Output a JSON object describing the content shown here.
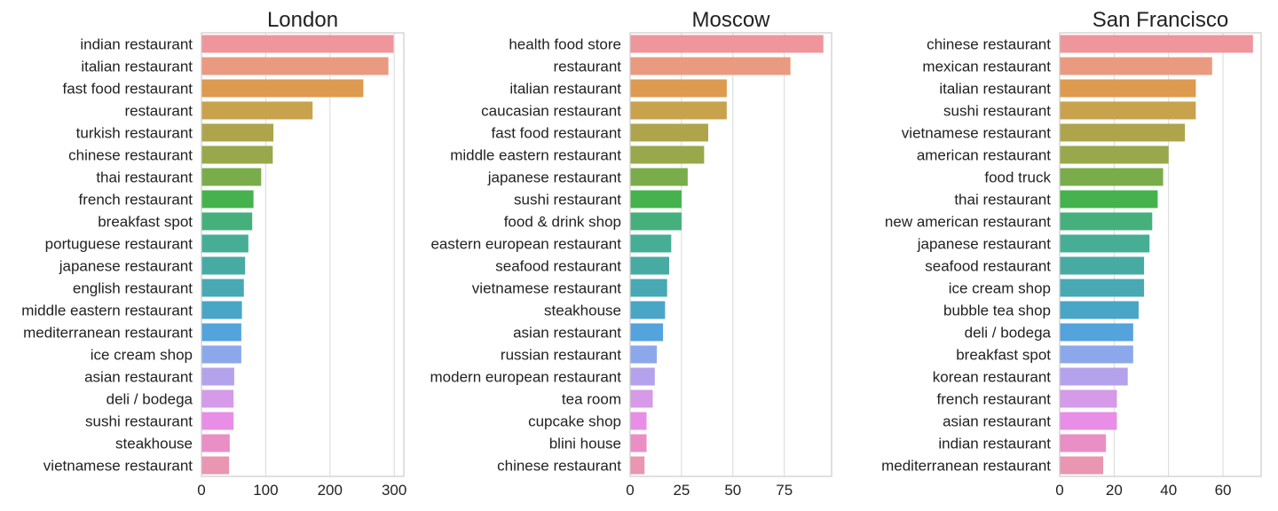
{
  "palette": [
    "#ee969c",
    "#e99a80",
    "#de9a4e",
    "#c9a24e",
    "#aea44b",
    "#98a84b",
    "#7aac4c",
    "#45b24e",
    "#46b07c",
    "#46ae95",
    "#47aba4",
    "#48a9b4",
    "#49a6c6",
    "#54a3dc",
    "#8ba9ea",
    "#b5a2ec",
    "#d59ae8",
    "#e88ee6",
    "#ea8ec6",
    "#ea95b2"
  ],
  "chart_data": [
    {
      "type": "bar",
      "orientation": "horizontal",
      "title": "London",
      "categories": [
        "indian restaurant",
        "italian restaurant",
        "fast food restaurant",
        "restaurant",
        "turkish restaurant",
        "chinese restaurant",
        "thai restaurant",
        "french restaurant",
        "breakfast spot",
        "portuguese restaurant",
        "japanese restaurant",
        "english restaurant",
        "middle eastern restaurant",
        "mediterranean restaurant",
        "ice cream shop",
        "asian restaurant",
        "deli / bodega",
        "sushi restaurant",
        "steakhouse",
        "vietnamese restaurant"
      ],
      "values": [
        299,
        291,
        252,
        173,
        112,
        111,
        93,
        81,
        79,
        73,
        68,
        66,
        63,
        62,
        62,
        51,
        50,
        50,
        44,
        43
      ],
      "xlim": [
        0,
        315
      ],
      "xticks": [
        0,
        100,
        200,
        300
      ],
      "grid": true
    },
    {
      "type": "bar",
      "orientation": "horizontal",
      "title": "Moscow",
      "categories": [
        "health food store",
        "restaurant",
        "italian restaurant",
        "caucasian restaurant",
        "fast food restaurant",
        "middle eastern restaurant",
        "japanese restaurant",
        "sushi restaurant",
        "food & drink shop",
        "eastern european restaurant",
        "seafood restaurant",
        "vietnamese restaurant",
        "steakhouse",
        "asian restaurant",
        "russian restaurant",
        "modern european restaurant",
        "tea room",
        "cupcake shop",
        "blini house",
        "chinese restaurant"
      ],
      "values": [
        94,
        78,
        47,
        47,
        38,
        36,
        28,
        25,
        25,
        20,
        19,
        18,
        17,
        16,
        13,
        12,
        11,
        8,
        8,
        7
      ],
      "xlim": [
        0,
        98
      ],
      "xticks": [
        0,
        25,
        50,
        75
      ],
      "grid": true
    },
    {
      "type": "bar",
      "orientation": "horizontal",
      "title": "San Francisco",
      "categories": [
        "chinese restaurant",
        "mexican restaurant",
        "italian restaurant",
        "sushi restaurant",
        "vietnamese restaurant",
        "american restaurant",
        "food truck",
        "thai restaurant",
        "new american restaurant",
        "japanese restaurant",
        "seafood restaurant",
        "ice cream shop",
        "bubble tea shop",
        "deli / bodega",
        "breakfast spot",
        "korean restaurant",
        "french restaurant",
        "asian restaurant",
        "indian restaurant",
        "mediterranean restaurant"
      ],
      "values": [
        71,
        56,
        50,
        50,
        46,
        40,
        38,
        36,
        34,
        33,
        31,
        31,
        29,
        27,
        27,
        25,
        21,
        21,
        17,
        16
      ],
      "xlim": [
        0,
        74
      ],
      "xticks": [
        0,
        20,
        40,
        60
      ],
      "grid": true
    }
  ]
}
